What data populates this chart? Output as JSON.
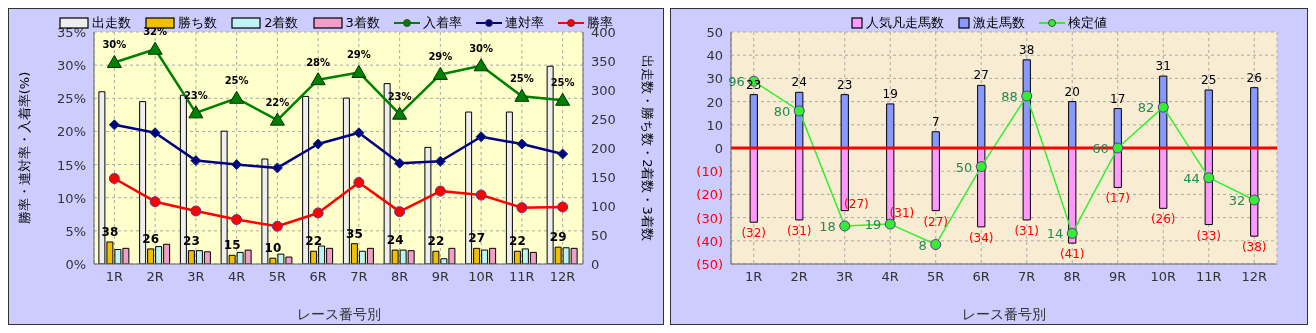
{
  "chart_data": [
    {
      "type": "bar",
      "xlabel": "レース番号別",
      "ylabel": "勝率・連対率・入着率(%)",
      "y2label": "出走数・勝ち数・2着数・3着数",
      "categories": [
        "1R",
        "2R",
        "3R",
        "4R",
        "5R",
        "6R",
        "7R",
        "8R",
        "9R",
        "10R",
        "11R",
        "12R"
      ],
      "series": [
        {
          "name": "出走数",
          "axis": "y2",
          "color": "#eeeeee",
          "values": [
            297,
            280,
            291,
            229,
            181,
            289,
            286,
            311,
            201,
            262,
            262,
            341
          ]
        },
        {
          "name": "勝ち数",
          "axis": "y2",
          "color": "#f0c000",
          "values": [
            38,
            26,
            23,
            15,
            10,
            22,
            35,
            24,
            22,
            27,
            22,
            29
          ],
          "value_labels": [
            "38",
            "26",
            "23",
            "15",
            "10",
            "22",
            "35",
            "24",
            "22",
            "27",
            "22",
            "29"
          ]
        },
        {
          "name": "2着数",
          "axis": "y2",
          "color": "#c0f4f4",
          "values": [
            25,
            30,
            23,
            20,
            17,
            31,
            22,
            24,
            9,
            24,
            26,
            28
          ]
        },
        {
          "name": "3着数",
          "axis": "y2",
          "color": "#f0a0c8",
          "values": [
            27,
            34,
            21,
            24,
            12,
            27,
            27,
            23,
            27,
            27,
            20,
            27
          ]
        },
        {
          "name": "入着率",
          "type": "line",
          "axis": "y",
          "color": "#008000",
          "marker": "triangle",
          "values": [
            30.4,
            32.4,
            22.8,
            25.0,
            21.7,
            27.8,
            28.9,
            22.6,
            28.6,
            29.9,
            25.3,
            24.7
          ],
          "value_labels": [
            "30%",
            "32%",
            "23%",
            "25%",
            "22%",
            "28%",
            "29%",
            "23%",
            "29%",
            "30%",
            "25%",
            "25%"
          ]
        },
        {
          "name": "連対率",
          "type": "line",
          "axis": "y",
          "color": "#000080",
          "marker": "diamond",
          "values": [
            21.0,
            19.8,
            15.6,
            15.0,
            14.5,
            18.1,
            19.8,
            15.2,
            15.5,
            19.2,
            18.1,
            16.6
          ]
        },
        {
          "name": "勝率",
          "type": "line",
          "axis": "y",
          "color": "#ff0000",
          "marker": "circle",
          "values": [
            12.9,
            9.4,
            8.0,
            6.7,
            5.7,
            7.7,
            12.3,
            7.9,
            11.0,
            10.4,
            8.5,
            8.6
          ]
        }
      ],
      "ylim": [
        0,
        35
      ],
      "yticks": [
        {
          "value": 0,
          "label": "0%"
        },
        {
          "value": 5,
          "label": "5%"
        },
        {
          "value": 10,
          "label": "10%"
        },
        {
          "value": 15,
          "label": "15%"
        },
        {
          "value": 20,
          "label": "20%"
        },
        {
          "value": 25,
          "label": "25%"
        },
        {
          "value": 30,
          "label": "30%"
        },
        {
          "value": 35,
          "label": "35%"
        }
      ],
      "y2lim": [
        0,
        400
      ],
      "y2ticks": [
        0,
        50,
        100,
        150,
        200,
        250,
        300,
        350,
        400
      ],
      "grid": true,
      "legend": "top"
    },
    {
      "type": "bar",
      "stacked": true,
      "xlabel": "レース番号別",
      "categories": [
        "1R",
        "2R",
        "3R",
        "4R",
        "5R",
        "6R",
        "7R",
        "8R",
        "9R",
        "10R",
        "11R",
        "12R"
      ],
      "series": [
        {
          "name": "人気凡走馬数",
          "axis": "y",
          "color": "#ff99ff",
          "values": [
            -32,
            -31,
            -27,
            -31,
            -27,
            -34,
            -31,
            -41,
            -17,
            -26,
            -33,
            -38
          ],
          "value_labels": [
            "(32)",
            "(31)",
            "(27)",
            "(31)",
            "(27)",
            "(34)",
            "(31)",
            "(41)",
            "(17)",
            "(26)",
            "(33)",
            "(38)"
          ]
        },
        {
          "name": "激走馬数",
          "axis": "y",
          "color": "#8899ff",
          "values": [
            23,
            24,
            23,
            19,
            7,
            27,
            38,
            20,
            17,
            31,
            25,
            26
          ],
          "value_labels": [
            "23",
            "24",
            "23",
            "19",
            "7",
            "27",
            "38",
            "20",
            "17",
            "31",
            "25",
            "26"
          ]
        },
        {
          "name": "検定値",
          "type": "line",
          "axis": "y2",
          "color": "#33ee33",
          "marker": "circle",
          "values": [
            96,
            80,
            18,
            19,
            8,
            50,
            88,
            14,
            60,
            82,
            44,
            32
          ],
          "value_labels": [
            "96",
            "80",
            "18",
            "19",
            "8",
            "50",
            "88",
            "14",
            "60",
            "82",
            "44",
            "32"
          ]
        }
      ],
      "ylim": [
        -50,
        50
      ],
      "yticks": [
        {
          "value": -50,
          "label": "(50)"
        },
        {
          "value": -40,
          "label": "(40)"
        },
        {
          "value": -30,
          "label": "(30)"
        },
        {
          "value": -20,
          "label": "(20)"
        },
        {
          "value": -10,
          "label": "(10)"
        },
        0,
        10,
        20,
        30,
        40,
        50
      ],
      "y2lim": [
        -2.5,
        122.5
      ],
      "ref_lines": [
        {
          "axis": "y",
          "value": 0,
          "color": "#ff0000"
        }
      ],
      "grid": true,
      "legend": "top"
    }
  ]
}
